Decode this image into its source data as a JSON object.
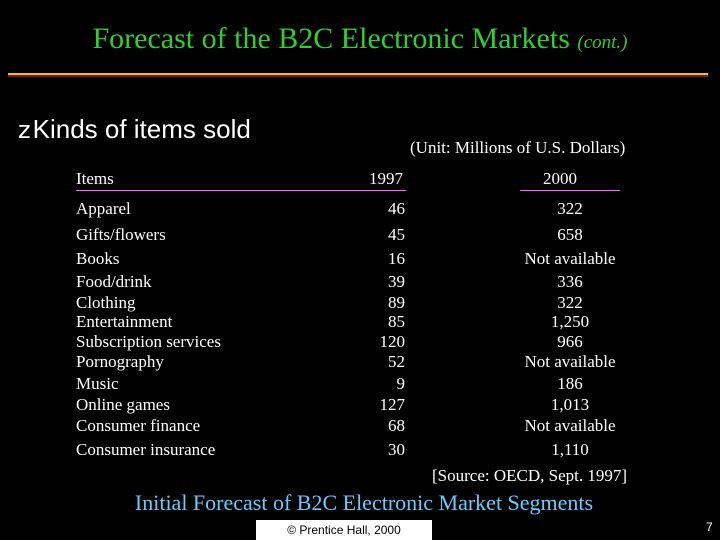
{
  "slide": {
    "title": "Forecast of the B2C Electronic Markets",
    "title_suffix": "(cont.)",
    "bullet_glyph": "z",
    "bullet_text": "Kinds of items sold",
    "unit_note": "(Unit: Millions of U.S. Dollars)",
    "source": "[Source: OECD, Sept. 1997]",
    "caption": "Initial Forecast of B2C Electronic Market Segments",
    "footer": "© Prentice Hall, 2000",
    "page_number": "7"
  },
  "table": {
    "headers": {
      "items": "Items",
      "year1": "1997",
      "year2": "2000"
    },
    "rows": [
      {
        "item": "Apparel",
        "v1997": "46",
        "v2000": "322"
      },
      {
        "item": "Gifts/flowers",
        "v1997": "45",
        "v2000": "658"
      },
      {
        "item": "Books",
        "v1997": "16",
        "v2000": "Not available"
      },
      {
        "item": "Food/drink",
        "v1997": "39",
        "v2000": "336"
      },
      {
        "item": "Clothing",
        "v1997": "89",
        "v2000": "322"
      },
      {
        "item": "Entertainment",
        "v1997": "85",
        "v2000": "1,250"
      },
      {
        "item": "Subscription services",
        "v1997": "120",
        "v2000": "966"
      },
      {
        "item": "Pornography",
        "v1997": "52",
        "v2000": "Not available"
      },
      {
        "item": "Music",
        "v1997": "9",
        "v2000": "186"
      },
      {
        "item": "Online games",
        "v1997": "127",
        "v2000": "1,013"
      },
      {
        "item": "Consumer finance",
        "v1997": "68",
        "v2000": "Not available"
      },
      {
        "item": "Consumer insurance",
        "v1997": "30",
        "v2000": "1,110"
      }
    ]
  }
}
